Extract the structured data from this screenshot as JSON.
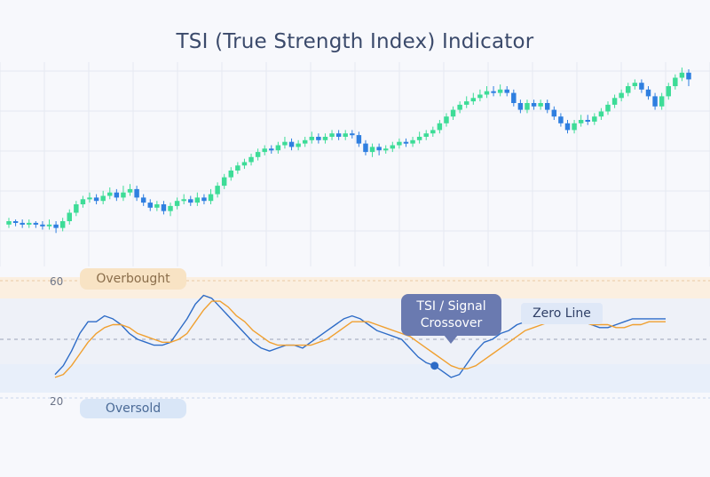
{
  "title": "TSI (True Strength Index) Indicator",
  "colors": {
    "bull": "#3ddc97",
    "bear": "#2f7fe0",
    "tsi": "#2e6cc7",
    "signal": "#f0a030",
    "overbought_zone": "#fbefe0",
    "oversold_zone": "#e8effa"
  },
  "labels": {
    "overbought": "Overbought",
    "oversold": "Oversold",
    "zero_line": "Zero Line",
    "crossover_line1": "TSI / Signal",
    "crossover_line2": "Crossover"
  },
  "chart_data": [
    {
      "type": "candlestick",
      "title": "TSI (True Strength Index) Indicator",
      "grid": true,
      "candles": [
        {
          "o": 158,
          "c": 160,
          "h": 162,
          "l": 156
        },
        {
          "o": 160,
          "c": 159,
          "h": 161,
          "l": 157
        },
        {
          "o": 159,
          "c": 158,
          "h": 161,
          "l": 156
        },
        {
          "o": 158,
          "c": 159,
          "h": 161,
          "l": 156
        },
        {
          "o": 159,
          "c": 158,
          "h": 160,
          "l": 156
        },
        {
          "o": 158,
          "c": 157,
          "h": 160,
          "l": 155
        },
        {
          "o": 157,
          "c": 158,
          "h": 161,
          "l": 155
        },
        {
          "o": 158,
          "c": 156,
          "h": 160,
          "l": 153
        },
        {
          "o": 156,
          "c": 160,
          "h": 162,
          "l": 154
        },
        {
          "o": 160,
          "c": 165,
          "h": 167,
          "l": 158
        },
        {
          "o": 165,
          "c": 170,
          "h": 172,
          "l": 163
        },
        {
          "o": 170,
          "c": 173,
          "h": 175,
          "l": 168
        },
        {
          "o": 173,
          "c": 174,
          "h": 177,
          "l": 171
        },
        {
          "o": 174,
          "c": 172,
          "h": 176,
          "l": 170
        },
        {
          "o": 172,
          "c": 175,
          "h": 178,
          "l": 170
        },
        {
          "o": 175,
          "c": 177,
          "h": 180,
          "l": 173
        },
        {
          "o": 177,
          "c": 174,
          "h": 179,
          "l": 172
        },
        {
          "o": 174,
          "c": 177,
          "h": 181,
          "l": 172
        },
        {
          "o": 177,
          "c": 179,
          "h": 182,
          "l": 175
        },
        {
          "o": 179,
          "c": 174,
          "h": 181,
          "l": 172
        },
        {
          "o": 174,
          "c": 171,
          "h": 176,
          "l": 169
        },
        {
          "o": 171,
          "c": 168,
          "h": 173,
          "l": 166
        },
        {
          "o": 168,
          "c": 170,
          "h": 172,
          "l": 166
        },
        {
          "o": 170,
          "c": 166,
          "h": 172,
          "l": 164
        },
        {
          "o": 166,
          "c": 169,
          "h": 171,
          "l": 163
        },
        {
          "o": 169,
          "c": 172,
          "h": 174,
          "l": 167
        },
        {
          "o": 172,
          "c": 173,
          "h": 176,
          "l": 170
        },
        {
          "o": 173,
          "c": 171,
          "h": 175,
          "l": 169
        },
        {
          "o": 171,
          "c": 174,
          "h": 177,
          "l": 169
        },
        {
          "o": 174,
          "c": 172,
          "h": 176,
          "l": 170
        },
        {
          "o": 172,
          "c": 176,
          "h": 179,
          "l": 170
        },
        {
          "o": 176,
          "c": 181,
          "h": 183,
          "l": 174
        },
        {
          "o": 181,
          "c": 186,
          "h": 188,
          "l": 179
        },
        {
          "o": 186,
          "c": 190,
          "h": 192,
          "l": 184
        },
        {
          "o": 190,
          "c": 193,
          "h": 195,
          "l": 188
        },
        {
          "o": 193,
          "c": 195,
          "h": 197,
          "l": 191
        },
        {
          "o": 195,
          "c": 198,
          "h": 200,
          "l": 193
        },
        {
          "o": 198,
          "c": 201,
          "h": 203,
          "l": 196
        },
        {
          "o": 201,
          "c": 203,
          "h": 205,
          "l": 199
        },
        {
          "o": 203,
          "c": 202,
          "h": 205,
          "l": 200
        },
        {
          "o": 202,
          "c": 205,
          "h": 207,
          "l": 200
        },
        {
          "o": 205,
          "c": 207,
          "h": 210,
          "l": 203
        },
        {
          "o": 207,
          "c": 204,
          "h": 209,
          "l": 202
        },
        {
          "o": 204,
          "c": 206,
          "h": 208,
          "l": 202
        },
        {
          "o": 206,
          "c": 208,
          "h": 210,
          "l": 204
        },
        {
          "o": 208,
          "c": 210,
          "h": 213,
          "l": 206
        },
        {
          "o": 210,
          "c": 208,
          "h": 212,
          "l": 206
        },
        {
          "o": 208,
          "c": 210,
          "h": 212,
          "l": 206
        },
        {
          "o": 210,
          "c": 212,
          "h": 214,
          "l": 208
        },
        {
          "o": 212,
          "c": 210,
          "h": 214,
          "l": 208
        },
        {
          "o": 210,
          "c": 212,
          "h": 214,
          "l": 208
        },
        {
          "o": 212,
          "c": 211,
          "h": 214,
          "l": 209
        },
        {
          "o": 211,
          "c": 206,
          "h": 213,
          "l": 204
        },
        {
          "o": 206,
          "c": 201,
          "h": 208,
          "l": 199
        },
        {
          "o": 201,
          "c": 204,
          "h": 206,
          "l": 198
        },
        {
          "o": 204,
          "c": 202,
          "h": 206,
          "l": 199
        },
        {
          "o": 202,
          "c": 203,
          "h": 205,
          "l": 200
        },
        {
          "o": 203,
          "c": 205,
          "h": 207,
          "l": 201
        },
        {
          "o": 205,
          "c": 207,
          "h": 209,
          "l": 203
        },
        {
          "o": 207,
          "c": 206,
          "h": 209,
          "l": 204
        },
        {
          "o": 206,
          "c": 208,
          "h": 210,
          "l": 204
        },
        {
          "o": 208,
          "c": 210,
          "h": 213,
          "l": 206
        },
        {
          "o": 210,
          "c": 212,
          "h": 214,
          "l": 208
        },
        {
          "o": 212,
          "c": 214,
          "h": 216,
          "l": 210
        },
        {
          "o": 214,
          "c": 218,
          "h": 220,
          "l": 212
        },
        {
          "o": 218,
          "c": 222,
          "h": 224,
          "l": 216
        },
        {
          "o": 222,
          "c": 226,
          "h": 228,
          "l": 220
        },
        {
          "o": 226,
          "c": 229,
          "h": 231,
          "l": 224
        },
        {
          "o": 229,
          "c": 231,
          "h": 234,
          "l": 227
        },
        {
          "o": 231,
          "c": 233,
          "h": 236,
          "l": 229
        },
        {
          "o": 233,
          "c": 235,
          "h": 238,
          "l": 231
        },
        {
          "o": 235,
          "c": 237,
          "h": 240,
          "l": 233
        },
        {
          "o": 237,
          "c": 236,
          "h": 240,
          "l": 234
        },
        {
          "o": 236,
          "c": 238,
          "h": 241,
          "l": 234
        },
        {
          "o": 238,
          "c": 236,
          "h": 240,
          "l": 234
        },
        {
          "o": 236,
          "c": 230,
          "h": 238,
          "l": 228
        },
        {
          "o": 230,
          "c": 226,
          "h": 232,
          "l": 224
        },
        {
          "o": 226,
          "c": 230,
          "h": 232,
          "l": 224
        },
        {
          "o": 230,
          "c": 228,
          "h": 232,
          "l": 226
        },
        {
          "o": 228,
          "c": 230,
          "h": 232,
          "l": 226
        },
        {
          "o": 230,
          "c": 226,
          "h": 232,
          "l": 224
        },
        {
          "o": 226,
          "c": 222,
          "h": 228,
          "l": 220
        },
        {
          "o": 222,
          "c": 218,
          "h": 224,
          "l": 216
        },
        {
          "o": 218,
          "c": 214,
          "h": 220,
          "l": 212
        },
        {
          "o": 214,
          "c": 218,
          "h": 220,
          "l": 212
        },
        {
          "o": 218,
          "c": 220,
          "h": 223,
          "l": 216
        },
        {
          "o": 220,
          "c": 219,
          "h": 223,
          "l": 217
        },
        {
          "o": 219,
          "c": 222,
          "h": 224,
          "l": 217
        },
        {
          "o": 222,
          "c": 225,
          "h": 227,
          "l": 220
        },
        {
          "o": 225,
          "c": 229,
          "h": 231,
          "l": 223
        },
        {
          "o": 229,
          "c": 233,
          "h": 235,
          "l": 227
        },
        {
          "o": 233,
          "c": 236,
          "h": 238,
          "l": 231
        },
        {
          "o": 236,
          "c": 240,
          "h": 242,
          "l": 234
        },
        {
          "o": 240,
          "c": 242,
          "h": 244,
          "l": 238
        },
        {
          "o": 242,
          "c": 238,
          "h": 244,
          "l": 236
        },
        {
          "o": 238,
          "c": 234,
          "h": 240,
          "l": 232
        },
        {
          "o": 234,
          "c": 228,
          "h": 236,
          "l": 226
        },
        {
          "o": 228,
          "c": 234,
          "h": 236,
          "l": 226
        },
        {
          "o": 234,
          "c": 240,
          "h": 242,
          "l": 232
        },
        {
          "o": 240,
          "c": 245,
          "h": 247,
          "l": 238
        },
        {
          "o": 245,
          "c": 248,
          "h": 251,
          "l": 243
        },
        {
          "o": 248,
          "c": 244,
          "h": 250,
          "l": 240
        }
      ]
    },
    {
      "type": "line",
      "y_ticks": [
        "60",
        "20"
      ],
      "overbought_level": 60,
      "oversold_level": 20,
      "zero_level": 40,
      "series": [
        {
          "key": "tsi",
          "x": [
            0,
            1,
            2,
            3,
            4,
            5,
            6,
            7,
            8,
            9,
            10,
            11,
            12,
            13,
            14,
            15,
            16,
            17,
            18,
            19,
            20,
            21,
            22,
            23,
            24,
            25,
            26,
            27,
            28,
            29,
            30,
            31,
            32,
            33,
            34,
            35,
            36,
            37,
            38,
            39,
            40,
            41,
            42,
            43,
            44,
            45,
            46,
            47,
            48,
            49,
            50,
            51,
            52,
            53,
            54,
            55,
            56,
            57,
            58,
            59,
            60,
            61,
            62,
            63,
            64,
            65,
            66,
            67,
            68,
            69,
            70,
            71,
            72,
            73,
            74
          ],
          "values": [
            28,
            31,
            36,
            42,
            46,
            46,
            48,
            47,
            45,
            42,
            40,
            39,
            38,
            38,
            39,
            43,
            47,
            52,
            55,
            54,
            51,
            48,
            45,
            42,
            39,
            37,
            36,
            37,
            38,
            38,
            37,
            39,
            41,
            43,
            45,
            47,
            48,
            47,
            45,
            43,
            42,
            41,
            40,
            37,
            34,
            32,
            31,
            29,
            27,
            28,
            32,
            36,
            39,
            40,
            42,
            43,
            45,
            46,
            47,
            47,
            48,
            48,
            48,
            47,
            46,
            45,
            44,
            44,
            45,
            46,
            47,
            47,
            47,
            47,
            47
          ]
        },
        {
          "key": "signal",
          "x": [
            0,
            1,
            2,
            3,
            4,
            5,
            6,
            7,
            8,
            9,
            10,
            11,
            12,
            13,
            14,
            15,
            16,
            17,
            18,
            19,
            20,
            21,
            22,
            23,
            24,
            25,
            26,
            27,
            28,
            29,
            30,
            31,
            32,
            33,
            34,
            35,
            36,
            37,
            38,
            39,
            40,
            41,
            42,
            43,
            44,
            45,
            46,
            47,
            48,
            49,
            50,
            51,
            52,
            53,
            54,
            55,
            56,
            57,
            58,
            59,
            60,
            61,
            62,
            63,
            64,
            65,
            66,
            67,
            68,
            69,
            70,
            71,
            72,
            73,
            74
          ],
          "values": [
            27,
            28,
            31,
            35,
            39,
            42,
            44,
            45,
            45,
            44,
            42,
            41,
            40,
            39,
            39,
            40,
            42,
            46,
            50,
            53,
            53,
            51,
            48,
            46,
            43,
            41,
            39,
            38,
            38,
            38,
            38,
            38,
            39,
            40,
            42,
            44,
            46,
            46,
            46,
            45,
            44,
            43,
            42,
            41,
            39,
            37,
            35,
            33,
            31,
            30,
            30,
            31,
            33,
            35,
            37,
            39,
            41,
            43,
            44,
            45,
            46,
            46,
            46,
            46,
            46,
            45,
            45,
            45,
            44,
            44,
            45,
            45,
            46,
            46,
            46
          ]
        }
      ],
      "annotations": [
        "Overbought",
        "Oversold",
        "Zero Line",
        "TSI / Signal Crossover"
      ]
    }
  ]
}
